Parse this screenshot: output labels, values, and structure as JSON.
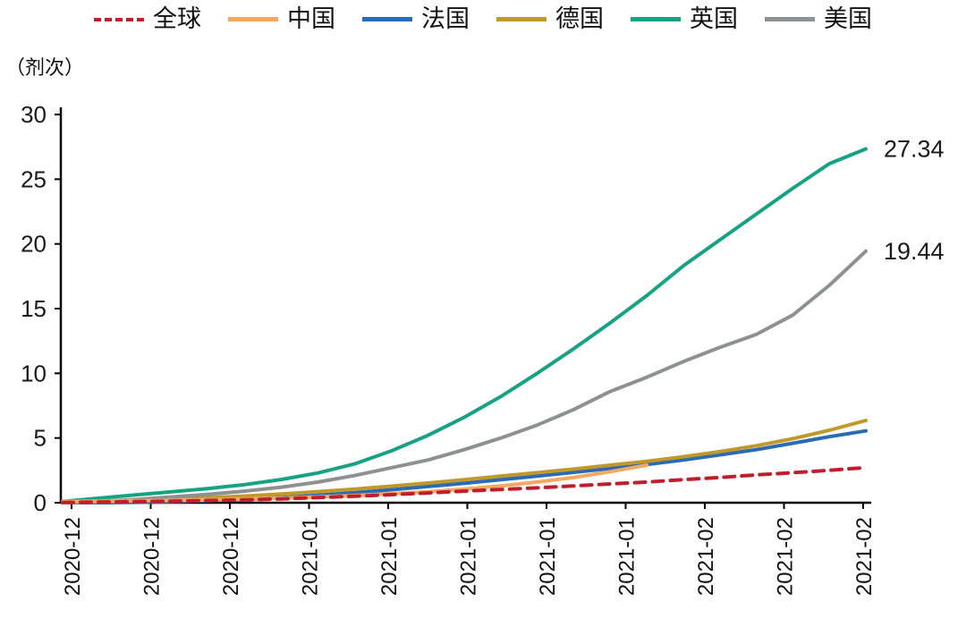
{
  "chart_data": {
    "type": "line",
    "title": "",
    "ylabel": "（剂次）",
    "xlabel": "",
    "ylim": [
      0,
      30
    ],
    "y_ticks": [
      0,
      5,
      10,
      15,
      20,
      25,
      30
    ],
    "x_tick_labels": [
      "2020-12",
      "2020-12",
      "2020-12",
      "2021-01",
      "2021-01",
      "2021-01",
      "2021-01",
      "2021-01",
      "2021-02",
      "2021-02",
      "2021-02"
    ],
    "grid": false,
    "legend_position": "top",
    "series": [
      {
        "name": "全球",
        "key": "global",
        "color": "#bf1e2e",
        "dash": true,
        "end_label": null,
        "values": [
          0.02,
          0.05,
          0.08,
          0.12,
          0.17,
          0.22,
          0.3,
          0.4,
          0.5,
          0.62,
          0.75,
          0.9,
          1.02,
          1.15,
          1.3,
          1.45,
          1.6,
          1.78,
          1.95,
          2.15,
          2.32,
          2.5,
          2.72
        ]
      },
      {
        "name": "中国",
        "key": "china",
        "color": "#f6a860",
        "dash": false,
        "end_label": null,
        "values": [
          0.1,
          0.12,
          0.15,
          0.18,
          0.22,
          0.28,
          0.35,
          0.45,
          0.55,
          0.7,
          0.85,
          1.05,
          1.3,
          1.6,
          1.95,
          2.4,
          2.9,
          null,
          null,
          null,
          null,
          null,
          null
        ]
      },
      {
        "name": "法国",
        "key": "france",
        "color": "#2a6bb5",
        "dash": false,
        "end_label": null,
        "values": [
          0,
          0,
          0.03,
          0.08,
          0.15,
          0.25,
          0.4,
          0.58,
          0.78,
          1.0,
          1.25,
          1.5,
          1.78,
          2.05,
          2.35,
          2.65,
          2.95,
          3.3,
          3.7,
          4.1,
          4.6,
          5.1,
          5.55
        ]
      },
      {
        "name": "德国",
        "key": "germany",
        "color": "#c0992d",
        "dash": false,
        "end_label": null,
        "values": [
          0,
          0.06,
          0.15,
          0.26,
          0.38,
          0.52,
          0.68,
          0.86,
          1.05,
          1.28,
          1.52,
          1.78,
          2.05,
          2.32,
          2.6,
          2.9,
          3.2,
          3.55,
          3.95,
          4.4,
          4.95,
          5.6,
          6.35
        ]
      },
      {
        "name": "英国",
        "key": "uk",
        "color": "#17a284",
        "dash": false,
        "end_label": "27.34",
        "values": [
          0.1,
          0.35,
          0.6,
          0.85,
          1.1,
          1.4,
          1.8,
          2.3,
          3.0,
          4.0,
          5.2,
          6.6,
          8.2,
          10.0,
          11.9,
          13.9,
          16.0,
          18.3,
          20.3,
          22.3,
          24.3,
          26.2,
          27.34
        ]
      },
      {
        "name": "美国",
        "key": "usa",
        "color": "#8f9091",
        "dash": false,
        "end_label": "19.44",
        "values": [
          0,
          0.1,
          0.25,
          0.45,
          0.65,
          0.9,
          1.2,
          1.6,
          2.1,
          2.7,
          3.3,
          4.1,
          5.0,
          6.0,
          7.2,
          8.6,
          9.7,
          10.9,
          12.0,
          13.0,
          14.5,
          16.8,
          19.44
        ]
      }
    ]
  }
}
